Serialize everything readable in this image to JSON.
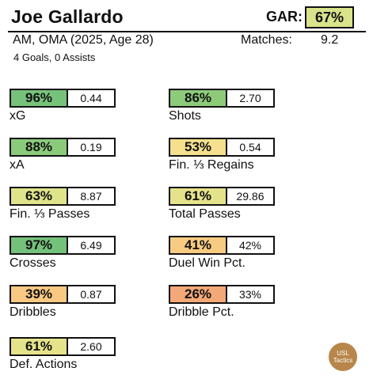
{
  "header": {
    "player_name": "Joe Gallardo",
    "gar_label": "GAR:",
    "gar_value": "67%",
    "gar_color": "#d8e38a",
    "position_line": "AM, OMA (2025, Age 28)",
    "matches_label": "Matches:",
    "matches_value": "9.2",
    "goals_assists": "4 Goals,  0 Assists"
  },
  "metrics": [
    {
      "label": "xG",
      "pct": "96%",
      "raw": "0.44",
      "color": "#77c27b"
    },
    {
      "label": "Shots",
      "pct": "86%",
      "raw": "2.70",
      "color": "#8dcb7b"
    },
    {
      "label": "xA",
      "pct": "88%",
      "raw": "0.19",
      "color": "#8acb7b"
    },
    {
      "label": "Fin. ⅓ Regains",
      "pct": "53%",
      "raw": "0.54",
      "color": "#f4e08d"
    },
    {
      "label": "Fin. ⅓ Passes",
      "pct": "63%",
      "raw": "8.87",
      "color": "#dfe38a"
    },
    {
      "label": "Total Passes",
      "pct": "61%",
      "raw": "29.86",
      "color": "#e5e38a"
    },
    {
      "label": "Crosses",
      "pct": "97%",
      "raw": "6.49",
      "color": "#74c17b"
    },
    {
      "label": "Duel Win Pct.",
      "pct": "41%",
      "raw": "42%",
      "color": "#f8cb82"
    },
    {
      "label": "Dribbles",
      "pct": "39%",
      "raw": "0.87",
      "color": "#f9c882"
    },
    {
      "label": "Dribble Pct.",
      "pct": "26%",
      "raw": "33%",
      "color": "#f3a878"
    },
    {
      "label": "Def. Actions",
      "pct": "61%",
      "raw": "2.60",
      "color": "#e5e38a"
    }
  ],
  "badge": {
    "line1": "USL",
    "line2": "Tactics",
    "color": "#b8864a"
  }
}
